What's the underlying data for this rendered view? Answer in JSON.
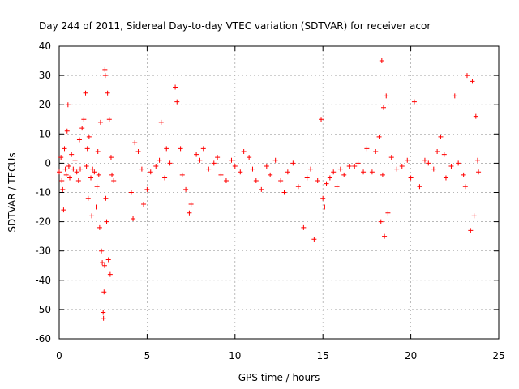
{
  "chart_data": {
    "type": "scatter",
    "title": "Day 244 of 2011, Sidereal Day-to-day VTEC variation (SDTVAR) for receiver acor",
    "xlabel": "GPS time / hours",
    "ylabel": "SDTVAR / TECUs",
    "xlim": [
      0,
      25
    ],
    "ylim": [
      -60,
      40
    ],
    "xticks": [
      0,
      5,
      10,
      15,
      20,
      25
    ],
    "yticks": [
      -60,
      -50,
      -40,
      -30,
      -20,
      -10,
      0,
      10,
      20,
      30,
      40
    ],
    "grid": true,
    "marker": "+",
    "color": "#ff0000",
    "series": [
      {
        "name": "SDTVAR",
        "points": [
          [
            0.0,
            -3
          ],
          [
            0.1,
            2
          ],
          [
            0.15,
            -6
          ],
          [
            0.2,
            -9
          ],
          [
            0.25,
            -16
          ],
          [
            0.3,
            5
          ],
          [
            0.35,
            -2
          ],
          [
            0.4,
            -4
          ],
          [
            0.45,
            11
          ],
          [
            0.5,
            20
          ],
          [
            0.55,
            -1
          ],
          [
            0.6,
            -5
          ],
          [
            0.7,
            3
          ],
          [
            0.8,
            -2
          ],
          [
            0.9,
            1
          ],
          [
            1.0,
            -3
          ],
          [
            1.1,
            -6
          ],
          [
            1.15,
            8
          ],
          [
            1.2,
            -2
          ],
          [
            1.3,
            12
          ],
          [
            1.4,
            15
          ],
          [
            1.5,
            24
          ],
          [
            1.55,
            -1
          ],
          [
            1.6,
            5
          ],
          [
            1.65,
            -12
          ],
          [
            1.7,
            9
          ],
          [
            1.8,
            -5
          ],
          [
            1.85,
            -18
          ],
          [
            1.9,
            -2
          ],
          [
            2.0,
            -3
          ],
          [
            2.1,
            -15
          ],
          [
            2.15,
            -8
          ],
          [
            2.2,
            4
          ],
          [
            2.25,
            -4
          ],
          [
            2.3,
            -22
          ],
          [
            2.35,
            14
          ],
          [
            2.4,
            -30
          ],
          [
            2.45,
            -34
          ],
          [
            2.5,
            -51
          ],
          [
            2.52,
            -53
          ],
          [
            2.55,
            -44
          ],
          [
            2.58,
            -35
          ],
          [
            2.6,
            32
          ],
          [
            2.62,
            30
          ],
          [
            2.65,
            -12
          ],
          [
            2.7,
            -20
          ],
          [
            2.75,
            24
          ],
          [
            2.8,
            -33
          ],
          [
            2.85,
            15
          ],
          [
            2.9,
            -38
          ],
          [
            2.95,
            2
          ],
          [
            3.0,
            -4
          ],
          [
            3.1,
            -6
          ],
          [
            4.1,
            -10
          ],
          [
            4.2,
            -19
          ],
          [
            4.3,
            7
          ],
          [
            4.5,
            4
          ],
          [
            4.7,
            -2
          ],
          [
            4.8,
            -14
          ],
          [
            5.0,
            -9
          ],
          [
            5.2,
            -3
          ],
          [
            5.5,
            -1
          ],
          [
            5.7,
            1
          ],
          [
            5.8,
            14
          ],
          [
            6.0,
            -5
          ],
          [
            6.1,
            5
          ],
          [
            6.3,
            0
          ],
          [
            6.6,
            26
          ],
          [
            6.7,
            21
          ],
          [
            6.9,
            5
          ],
          [
            7.0,
            -4
          ],
          [
            7.2,
            -9
          ],
          [
            7.4,
            -17
          ],
          [
            7.5,
            -14
          ],
          [
            7.8,
            3
          ],
          [
            8.0,
            1
          ],
          [
            8.2,
            5
          ],
          [
            8.5,
            -2
          ],
          [
            8.8,
            0
          ],
          [
            9.0,
            2
          ],
          [
            9.2,
            -4
          ],
          [
            9.5,
            -6
          ],
          [
            9.8,
            1
          ],
          [
            10.0,
            -1
          ],
          [
            10.3,
            -3
          ],
          [
            10.5,
            4
          ],
          [
            10.8,
            2
          ],
          [
            11.0,
            -2
          ],
          [
            11.2,
            -6
          ],
          [
            11.5,
            -9
          ],
          [
            11.8,
            -1
          ],
          [
            12.0,
            -4
          ],
          [
            12.3,
            1
          ],
          [
            12.6,
            -6
          ],
          [
            12.8,
            -10
          ],
          [
            13.0,
            -3
          ],
          [
            13.3,
            0
          ],
          [
            13.6,
            -8
          ],
          [
            13.9,
            -22
          ],
          [
            14.1,
            -5
          ],
          [
            14.3,
            -2
          ],
          [
            14.5,
            -26
          ],
          [
            14.7,
            -6
          ],
          [
            14.9,
            15
          ],
          [
            15.0,
            -12
          ],
          [
            15.1,
            -15
          ],
          [
            15.2,
            -7
          ],
          [
            15.4,
            -5
          ],
          [
            15.6,
            -3
          ],
          [
            15.8,
            -8
          ],
          [
            16.0,
            -2
          ],
          [
            16.2,
            -4
          ],
          [
            16.5,
            -1
          ],
          [
            16.8,
            -1
          ],
          [
            17.0,
            0
          ],
          [
            17.3,
            -3
          ],
          [
            17.5,
            5
          ],
          [
            17.8,
            -3
          ],
          [
            18.0,
            4
          ],
          [
            18.2,
            9
          ],
          [
            18.3,
            -20
          ],
          [
            18.35,
            35
          ],
          [
            18.4,
            -4
          ],
          [
            18.45,
            19
          ],
          [
            18.5,
            -25
          ],
          [
            18.6,
            23
          ],
          [
            18.7,
            -17
          ],
          [
            18.9,
            2
          ],
          [
            19.2,
            -2
          ],
          [
            19.5,
            -1
          ],
          [
            19.8,
            1
          ],
          [
            20.0,
            -5
          ],
          [
            20.2,
            21
          ],
          [
            20.5,
            -8
          ],
          [
            20.8,
            1
          ],
          [
            21.0,
            0
          ],
          [
            21.3,
            -2
          ],
          [
            21.5,
            4
          ],
          [
            21.7,
            9
          ],
          [
            21.9,
            3
          ],
          [
            22.0,
            -5
          ],
          [
            22.3,
            -1
          ],
          [
            22.5,
            23
          ],
          [
            22.7,
            0
          ],
          [
            23.0,
            -4
          ],
          [
            23.1,
            -8
          ],
          [
            23.2,
            30
          ],
          [
            23.4,
            -23
          ],
          [
            23.5,
            28
          ],
          [
            23.6,
            -18
          ],
          [
            23.7,
            16
          ],
          [
            23.8,
            1
          ],
          [
            23.85,
            -3
          ]
        ]
      }
    ]
  }
}
